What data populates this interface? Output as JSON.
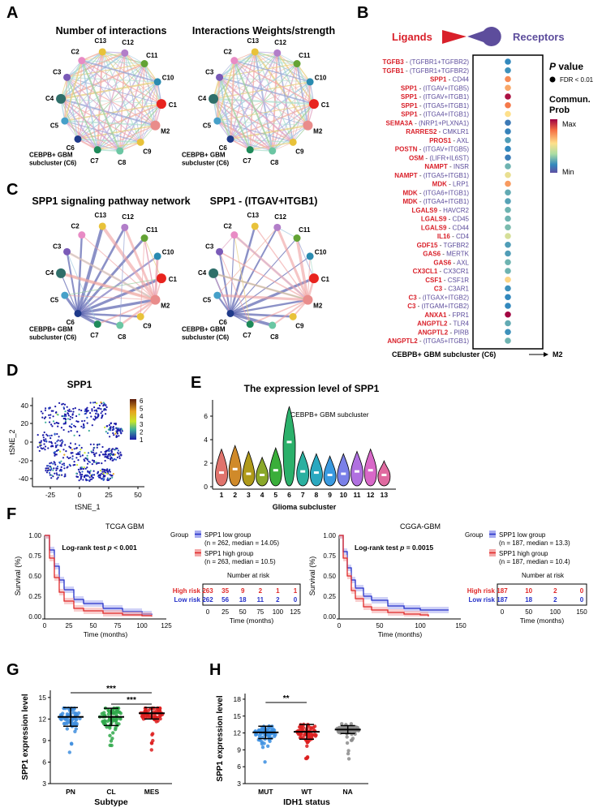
{
  "panels": {
    "A": "A",
    "B": "B",
    "C": "C",
    "D": "D",
    "E": "E",
    "F": "F",
    "G": "G",
    "H": "H"
  },
  "colors": {
    "ligand": "#d9202a",
    "receptor": "#5d4d9c",
    "low": "#2430c8",
    "high": "#e02828",
    "pn": "#3f8ede",
    "cl": "#2fa84a",
    "mes": "#dd1e1e",
    "mut": "#3a8ee0",
    "wt": "#dc1f1f",
    "na": "#8c8c8c"
  },
  "networks": {
    "nodes": [
      "C13",
      "C12",
      "C11",
      "C10",
      "C1",
      "M2",
      "C9",
      "C8",
      "C7",
      "C6",
      "C5",
      "C4",
      "C3",
      "C2"
    ],
    "node_colors": [
      "#e8c23a",
      "#b27ec9",
      "#63a334",
      "#2a8bb0",
      "#e8231e",
      "#e98c8b",
      "#e8c23a",
      "#6bc6a3",
      "#1f8a5a",
      "#1f3a8a",
      "#46a0c9",
      "#2f6f6a",
      "#7a5ab7",
      "#e88bc5"
    ],
    "cluster_label": "CEBPB+ GBM",
    "cluster_label2": "subcluster (C6)",
    "a_titles": [
      "Number of interactions",
      "Interactions Weights/strength"
    ],
    "c_titles": [
      "SPP1 signaling pathway network",
      "SPP1 - (ITGAV+ITGB1)"
    ]
  },
  "bubble": {
    "ligands_label": "Ligands",
    "receptors_label": "Receptors",
    "pvalue_title": "P value",
    "pvalue_suffix": " value",
    "pvalue_letter": "P",
    "pvalue_legend": "FDR < 0.01",
    "prob_title1": "Commun.",
    "prob_title2": "Prob",
    "max_label": "Max",
    "min_label": "Min",
    "x_label": "CEBPB+ GBM subcluster (C6)",
    "x_target": "M2",
    "pairs": [
      {
        "lig": "TGFB3",
        "sep": " - ",
        "rec": "(TGFBR1+TGFBR2)",
        "prob": 0.2
      },
      {
        "lig": "TGFB1",
        "sep": " - ",
        "rec": "(TGFBR1+TGFBR2)",
        "prob": 0.22
      },
      {
        "lig": "SPP1",
        "sep": " - ",
        "rec": "CD44",
        "prob": 0.75
      },
      {
        "lig": "SPP1",
        "sep": " - ",
        "rec": "(ITGAV+ITGB5)",
        "prob": 0.7
      },
      {
        "lig": "SPP1",
        "sep": " - ",
        "rec": "(ITGAV+ITGB1)",
        "prob": 0.97
      },
      {
        "lig": "SPP1",
        "sep": " - ",
        "rec": "(ITGA5+ITGB1)",
        "prob": 0.78
      },
      {
        "lig": "SPP1",
        "sep": " - ",
        "rec": "(ITGA4+ITGB1)",
        "prob": 0.6
      },
      {
        "lig": "SEMA3A",
        "sep": " - ",
        "rec": "(NRP1+PLXNA1)",
        "prob": 0.15
      },
      {
        "lig": "RARRES2",
        "sep": " - ",
        "rec": "CMKLR1",
        "prob": 0.18
      },
      {
        "lig": "PROS1",
        "sep": " - ",
        "rec": "AXL",
        "prob": 0.25
      },
      {
        "lig": "POSTN",
        "sep": " - ",
        "rec": "(ITGAV+ITGB5)",
        "prob": 0.2
      },
      {
        "lig": "OSM",
        "sep": " - ",
        "rec": "(LIFR+IL6ST)",
        "prob": 0.16
      },
      {
        "lig": "NAMPT",
        "sep": " - ",
        "rec": "INSR",
        "prob": 0.3
      },
      {
        "lig": "NAMPT",
        "sep": " - ",
        "rec": "(ITGA5+ITGB1)",
        "prob": 0.55
      },
      {
        "lig": "MDK",
        "sep": " - ",
        "rec": "LRP1",
        "prob": 0.72
      },
      {
        "lig": "MDK",
        "sep": " - ",
        "rec": "(ITGA6+ITGB1)",
        "prob": 0.28
      },
      {
        "lig": "MDK",
        "sep": " - ",
        "rec": "(ITGA4+ITGB1)",
        "prob": 0.26
      },
      {
        "lig": "LGALS9",
        "sep": " - ",
        "rec": "HAVCR2",
        "prob": 0.3
      },
      {
        "lig": "LGALS9",
        "sep": " - ",
        "rec": "CD45",
        "prob": 0.3
      },
      {
        "lig": "LGALS9",
        "sep": " - ",
        "rec": "CD44",
        "prob": 0.32
      },
      {
        "lig": "IL16",
        "sep": " - ",
        "rec": "CD4",
        "prob": 0.5
      },
      {
        "lig": "GDF15",
        "sep": " - ",
        "rec": "TGFBR2",
        "prob": 0.25
      },
      {
        "lig": "GAS6",
        "sep": " - ",
        "rec": "MERTK",
        "prob": 0.25
      },
      {
        "lig": "GAS6",
        "sep": " - ",
        "rec": "AXL",
        "prob": 0.3
      },
      {
        "lig": "CX3CL1",
        "sep": " - ",
        "rec": "CX3CR1",
        "prob": 0.3
      },
      {
        "lig": "CSF1",
        "sep": " - ",
        "rec": "CSF1R",
        "prob": 0.62
      },
      {
        "lig": "C3",
        "sep": " - ",
        "rec": "C3AR1",
        "prob": 0.22
      },
      {
        "lig": "C3",
        "sep": " - ",
        "rec": "(ITGAX+ITGB2)",
        "prob": 0.2
      },
      {
        "lig": "C3",
        "sep": " - ",
        "rec": "(ITGAM+ITGB2)",
        "prob": 0.2
      },
      {
        "lig": "ANXA1",
        "sep": " - ",
        "rec": "FPR1",
        "prob": 0.99
      },
      {
        "lig": "ANGPTL2",
        "sep": " - ",
        "rec": "TLR4",
        "prob": 0.28
      },
      {
        "lig": "ANGPTL2",
        "sep": " - ",
        "rec": "PIRB",
        "prob": 0.22
      },
      {
        "lig": "ANGPTL2",
        "sep": " - ",
        "rec": "(ITGA5+ITGB1)",
        "prob": 0.3
      }
    ]
  },
  "tsne": {
    "title": "SPP1",
    "xlabel": "tSNE_1",
    "ylabel": "tSNE_2",
    "xticks": [
      "-25",
      "0",
      "25",
      "50"
    ],
    "yticks": [
      "40",
      "20",
      "0",
      "-20",
      "-40"
    ],
    "scale": [
      "6",
      "5",
      "4",
      "3",
      "2",
      "1"
    ]
  },
  "violin": {
    "title": "The expression level of SPP1",
    "annotation": "CEBPB+ GBM subcluster",
    "xlabel": "Glioma subcluster",
    "yticks": [
      "6",
      "4",
      "2",
      "0"
    ],
    "chart_data": {
      "type": "violin",
      "categories": [
        "1",
        "2",
        "3",
        "4",
        "5",
        "6",
        "7",
        "8",
        "9",
        "10",
        "11",
        "12",
        "13"
      ],
      "medians": [
        1.2,
        1.5,
        1.1,
        1.0,
        1.4,
        3.8,
        1.3,
        1.2,
        1.0,
        1.1,
        1.3,
        1.4,
        1.0
      ],
      "maxima": [
        3.2,
        3.5,
        3.0,
        2.5,
        3.3,
        6.8,
        3.0,
        2.8,
        2.6,
        2.8,
        3.0,
        3.2,
        2.2
      ],
      "ylim": [
        0,
        7
      ]
    }
  },
  "km": [
    {
      "title": "TCGA GBM",
      "logrank": "Log-rank test ",
      "p_letter": "p",
      "p_value": " < 0.001",
      "group_label": "Group",
      "low_label": "SPP1 low group",
      "low_sub": "(n = 262, median = 14.05)",
      "high_label": "SPP1 high group",
      "high_sub": "(n = 263, median = 10.5)",
      "risk_title": "Number at risk",
      "high_risk": "High risk",
      "low_risk": "Low risk",
      "high_counts": [
        "263",
        "35",
        "9",
        "2",
        "1",
        "1"
      ],
      "low_counts": [
        "262",
        "56",
        "18",
        "11",
        "2",
        "0"
      ],
      "risk_ticks": [
        "0",
        "25",
        "50",
        "75",
        "100",
        "125"
      ],
      "xticks": [
        "0",
        "25",
        "50",
        "75",
        "100",
        "125"
      ],
      "yticks": [
        "1.00",
        "0.75",
        "0.50",
        "0.25",
        "0.00"
      ],
      "xlabel": "Time (months)",
      "ylabel": "Survival (%)",
      "chart_data": {
        "type": "line",
        "xmax": 125,
        "low": {
          "t": [
            0,
            5,
            10,
            15,
            20,
            30,
            40,
            60,
            80,
            100,
            110
          ],
          "s": [
            1.0,
            0.82,
            0.62,
            0.45,
            0.33,
            0.21,
            0.16,
            0.1,
            0.06,
            0.03,
            0.02
          ]
        },
        "high": {
          "t": [
            0,
            5,
            10,
            15,
            20,
            30,
            40,
            60,
            80,
            100,
            110
          ],
          "s": [
            1.0,
            0.72,
            0.48,
            0.3,
            0.19,
            0.1,
            0.07,
            0.04,
            0.02,
            0.01,
            0.0
          ]
        }
      }
    },
    {
      "title": "CGGA-GBM",
      "logrank": "Log-rank test ",
      "p_letter": "p",
      "p_value": " = 0.0015",
      "group_label": "Group",
      "low_label": "SPP1 low group",
      "low_sub": "(n = 187, median = 13.3)",
      "high_label": "SPP1 high group",
      "high_sub": "(n = 187, median = 10.4)",
      "risk_title": "Number at risk",
      "high_risk": "High risk",
      "low_risk": "Low risk",
      "high_counts": [
        "187",
        "10",
        "2",
        "0"
      ],
      "low_counts": [
        "187",
        "18",
        "2",
        "0"
      ],
      "risk_ticks": [
        "0",
        "50",
        "100",
        "150"
      ],
      "xticks": [
        "0",
        "50",
        "100",
        "150"
      ],
      "yticks": [
        "1.00",
        "0.75",
        "0.50",
        "0.25",
        "0.00"
      ],
      "xlabel": "Time (months)",
      "ylabel": "Survival (%)",
      "chart_data": {
        "type": "line",
        "xmax": 150,
        "low": {
          "t": [
            0,
            5,
            10,
            15,
            20,
            30,
            40,
            60,
            80,
            100,
            135
          ],
          "s": [
            1.0,
            0.8,
            0.6,
            0.45,
            0.35,
            0.25,
            0.2,
            0.13,
            0.1,
            0.08,
            0.08
          ]
        },
        "high": {
          "t": [
            0,
            5,
            10,
            15,
            20,
            30,
            40,
            60,
            80,
            100,
            110
          ],
          "s": [
            1.0,
            0.72,
            0.5,
            0.32,
            0.22,
            0.12,
            0.08,
            0.05,
            0.03,
            0.02,
            0.0
          ]
        }
      }
    }
  ],
  "subtype": {
    "ylabel": "SPP1 expression level",
    "xlabel": "Subtype",
    "categories": [
      "PN",
      "CL",
      "MES"
    ],
    "yticks": [
      "15",
      "12",
      "9",
      "6",
      "3"
    ],
    "sig_top": "***",
    "sig_bottom": "***",
    "means": [
      12.3,
      12.3,
      12.8
    ],
    "sd": [
      1.3,
      1.2,
      0.8
    ]
  },
  "idh": {
    "ylabel": "SPP1 expression level",
    "xlabel": "IDH1 status",
    "categories": [
      "MUT",
      "WT",
      "NA"
    ],
    "yticks": [
      "18",
      "15",
      "12",
      "9",
      "6",
      "3"
    ],
    "sig": "**",
    "means": [
      12.1,
      12.2,
      12.6
    ],
    "sd": [
      1.1,
      1.3,
      0.7
    ]
  }
}
